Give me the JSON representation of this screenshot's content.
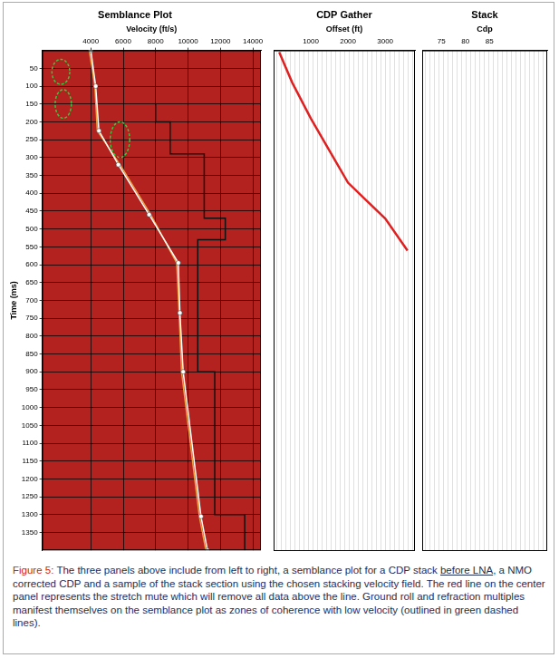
{
  "chart_data": [
    {
      "type": "line",
      "title": "Semblance Plot",
      "x_label": "Velocity (ft/s)",
      "y_label": "Time (ms)",
      "xlim": [
        1000,
        14500
      ],
      "xticks": [
        4000,
        6000,
        8000,
        10000,
        12000,
        14000
      ],
      "ylim": [
        0,
        1400
      ],
      "yticks": [
        50,
        100,
        150,
        200,
        250,
        300,
        350,
        400,
        450,
        500,
        550,
        600,
        650,
        700,
        750,
        800,
        850,
        900,
        950,
        1000,
        1050,
        1100,
        1150,
        1200,
        1250,
        1300,
        1350
      ],
      "grid": true,
      "series": [
        {
          "color": "#ffffff",
          "marker": "circle",
          "line_style": "solid",
          "x": [
            4000,
            4300,
            4500,
            5700,
            7600,
            9400,
            9500,
            9700,
            10800,
            11200
          ],
          "values": [
            0,
            100,
            225,
            320,
            460,
            595,
            735,
            900,
            1305,
            1400
          ]
        },
        {
          "color": "#f0a040",
          "marker": "none",
          "line_style": "solid",
          "x": [
            3900,
            4250,
            4400,
            5800,
            7700,
            9300,
            9450,
            9600,
            10700,
            11100
          ],
          "values": [
            0,
            100,
            225,
            320,
            460,
            595,
            735,
            900,
            1305,
            1400
          ]
        },
        {
          "color": "#111111",
          "marker": "none",
          "line_style": "stepped",
          "x": [
            8000,
            8900,
            11000,
            12300,
            10600,
            11650,
            13500,
            13500
          ],
          "values": [
            150,
            200,
            290,
            470,
            530,
            900,
            1300,
            1400
          ]
        }
      ],
      "coherence_zones": {
        "color": "#2ecc40",
        "line_style": "dashed",
        "zones": [
          {
            "x": [
              1600,
              2700
            ],
            "y": [
              25,
              95
            ]
          },
          {
            "x": [
              1800,
              2800
            ],
            "y": [
              110,
              190
            ]
          },
          {
            "x": [
              5200,
              6400
            ],
            "y": [
              200,
              300
            ]
          }
        ]
      }
    },
    {
      "type": "line",
      "title": "CDP Gather",
      "x_label": "Offset (ft)",
      "xlim": [
        0,
        3800
      ],
      "xticks": [
        1000,
        2000,
        3000
      ],
      "ylim": [
        0,
        1400
      ],
      "grid": false,
      "tick_labels": "x",
      "series": [
        {
          "color": "#e02020",
          "marker": "none",
          "line_style": "solid",
          "x": [
            150,
            500,
            1000,
            1500,
            2000,
            2500,
            3000,
            3600
          ],
          "values": [
            5,
            90,
            190,
            280,
            370,
            420,
            470,
            560
          ]
        }
      ]
    },
    {
      "type": "line",
      "title": "Stack",
      "x_label": "Cdp",
      "xlim": [
        71,
        97
      ],
      "xticks": [
        75,
        80,
        85
      ],
      "ylim": [
        0,
        1400
      ],
      "grid": false,
      "tick_labels": "x",
      "series": []
    }
  ],
  "caption": {
    "label": "Figure 5:",
    "before": " The three panels above include from left to right, a semblance plot for a CDP stack ",
    "underlined": "before LNA",
    "after": ", a NMO corrected CDP and a sample of the stack section using the chosen stacking velocity field. The red line on the center panel represents the stretch mute which will remove all data above the line. Ground roll and refraction multiples manifest themselves on the semblance plot as zones of coherence with low velocity (outlined in green dashed lines)."
  }
}
